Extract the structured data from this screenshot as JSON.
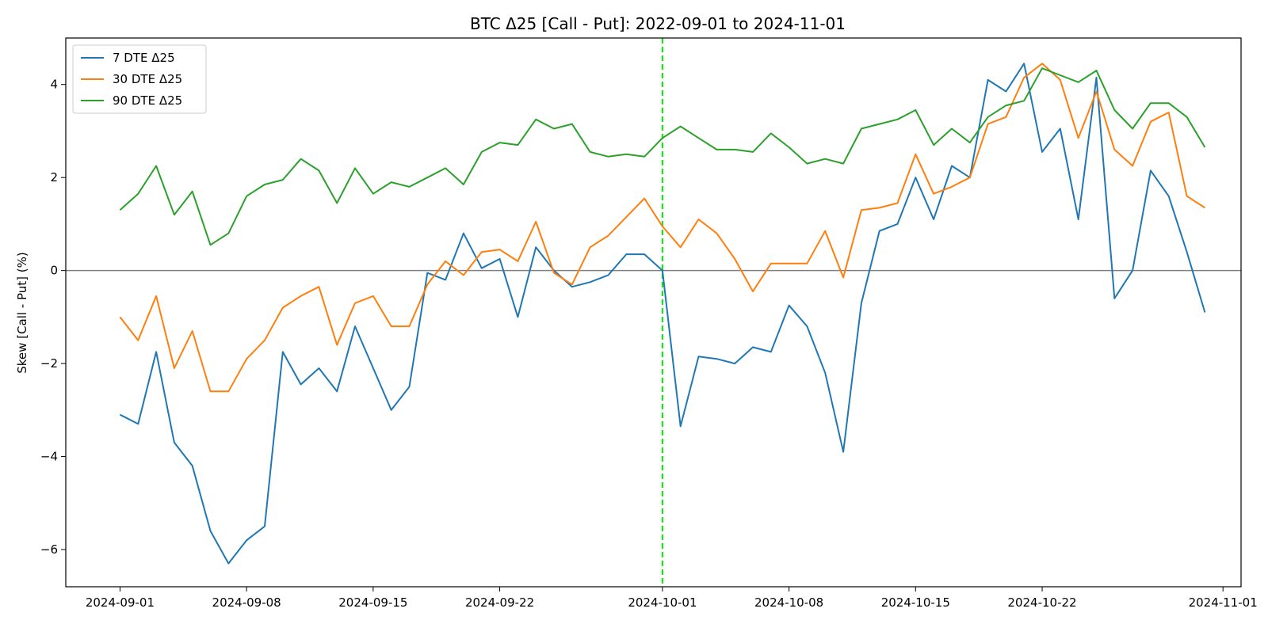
{
  "chart_data": {
    "type": "line",
    "title": "BTC Δ25 [Call - Put]: 2022-09-01 to 2024-11-01",
    "xlabel": "",
    "ylabel": "Skew [Call - Put] (%)",
    "xlim": [
      "2024-08-29",
      "2024-11-02"
    ],
    "ylim": [
      -6.8,
      5.0
    ],
    "x_ticks": [
      "2024-09-01",
      "2024-09-08",
      "2024-09-15",
      "2024-09-22",
      "2024-10-01",
      "2024-10-08",
      "2024-10-15",
      "2024-10-22",
      "2024-11-01"
    ],
    "y_ticks": [
      -6,
      -4,
      -2,
      0,
      2,
      4
    ],
    "zero_line": {
      "value": 0,
      "color": "#7f7f7f"
    },
    "marker_line": {
      "date": "2024-10-01",
      "color": "#00ee00",
      "style": "dashed"
    },
    "legend_position": "top-left",
    "grid": false,
    "x": [
      "2024-09-01",
      "2024-09-02",
      "2024-09-03",
      "2024-09-04",
      "2024-09-05",
      "2024-09-06",
      "2024-09-07",
      "2024-09-08",
      "2024-09-09",
      "2024-09-10",
      "2024-09-11",
      "2024-09-12",
      "2024-09-13",
      "2024-09-14",
      "2024-09-15",
      "2024-09-16",
      "2024-09-17",
      "2024-09-18",
      "2024-09-19",
      "2024-09-20",
      "2024-09-21",
      "2024-09-22",
      "2024-09-23",
      "2024-09-24",
      "2024-09-25",
      "2024-09-26",
      "2024-09-27",
      "2024-09-28",
      "2024-09-29",
      "2024-09-30",
      "2024-10-01",
      "2024-10-02",
      "2024-10-03",
      "2024-10-04",
      "2024-10-05",
      "2024-10-06",
      "2024-10-07",
      "2024-10-08",
      "2024-10-09",
      "2024-10-10",
      "2024-10-11",
      "2024-10-12",
      "2024-10-13",
      "2024-10-14",
      "2024-10-15",
      "2024-10-16",
      "2024-10-17",
      "2024-10-18",
      "2024-10-19",
      "2024-10-20",
      "2024-10-21",
      "2024-10-22",
      "2024-10-23",
      "2024-10-24",
      "2024-10-25",
      "2024-10-26",
      "2024-10-27",
      "2024-10-28",
      "2024-10-29",
      "2024-10-30",
      "2024-10-31"
    ],
    "series": [
      {
        "name": "7 DTE Δ25",
        "color": "#1f77b4",
        "values": [
          -3.1,
          -3.3,
          -1.75,
          -3.7,
          -4.2,
          -5.6,
          -6.3,
          -5.8,
          -5.5,
          -1.75,
          -2.45,
          -2.1,
          -2.6,
          -1.2,
          -2.1,
          -3.0,
          -2.5,
          -0.05,
          -0.2,
          0.8,
          0.05,
          0.25,
          -1.0,
          0.5,
          0.0,
          -0.35,
          -0.25,
          -0.1,
          0.35,
          0.35,
          0.0,
          -3.35,
          -1.85,
          -1.9,
          -2.0,
          -1.65,
          -1.75,
          -0.75,
          -1.2,
          -2.2,
          -3.9,
          -0.7,
          0.85,
          1.0,
          2.0,
          1.1,
          2.25,
          2.0,
          4.1,
          3.85,
          4.45,
          2.55,
          3.05,
          1.1,
          4.15,
          -0.6,
          0.0,
          2.15,
          1.6,
          0.4,
          -0.9
        ]
      },
      {
        "name": "30 DTE Δ25",
        "color": "#ff7f0e",
        "values": [
          -1.0,
          -1.5,
          -0.55,
          -2.1,
          -1.3,
          -2.6,
          -2.6,
          -1.9,
          -1.5,
          -0.8,
          -0.55,
          -0.35,
          -1.6,
          -0.7,
          -0.55,
          -1.2,
          -1.2,
          -0.3,
          0.2,
          -0.1,
          0.4,
          0.45,
          0.2,
          1.05,
          -0.05,
          -0.3,
          0.5,
          0.75,
          1.15,
          1.55,
          0.95,
          0.5,
          1.1,
          0.8,
          0.25,
          -0.45,
          0.15,
          0.15,
          0.15,
          0.85,
          -0.15,
          1.3,
          1.35,
          1.45,
          2.5,
          1.65,
          1.8,
          2.0,
          3.15,
          3.3,
          4.15,
          4.45,
          4.1,
          2.85,
          3.85,
          2.6,
          2.25,
          3.2,
          3.4,
          1.6,
          1.35
        ]
      },
      {
        "name": "90 DTE Δ25",
        "color": "#2ca02c",
        "values": [
          1.3,
          1.65,
          2.25,
          1.2,
          1.7,
          0.55,
          0.8,
          1.6,
          1.85,
          1.95,
          2.4,
          2.15,
          1.45,
          2.2,
          1.65,
          1.9,
          1.8,
          2.0,
          2.2,
          1.85,
          2.55,
          2.75,
          2.7,
          3.25,
          3.05,
          3.15,
          2.55,
          2.45,
          2.5,
          2.45,
          2.85,
          3.1,
          2.85,
          2.6,
          2.6,
          2.55,
          2.95,
          2.65,
          2.3,
          2.4,
          2.3,
          3.05,
          3.15,
          3.25,
          3.45,
          2.7,
          3.05,
          2.75,
          3.3,
          3.55,
          3.65,
          4.35,
          4.2,
          4.05,
          4.3,
          3.45,
          3.05,
          3.6,
          3.6,
          3.3,
          2.65
        ]
      }
    ]
  }
}
